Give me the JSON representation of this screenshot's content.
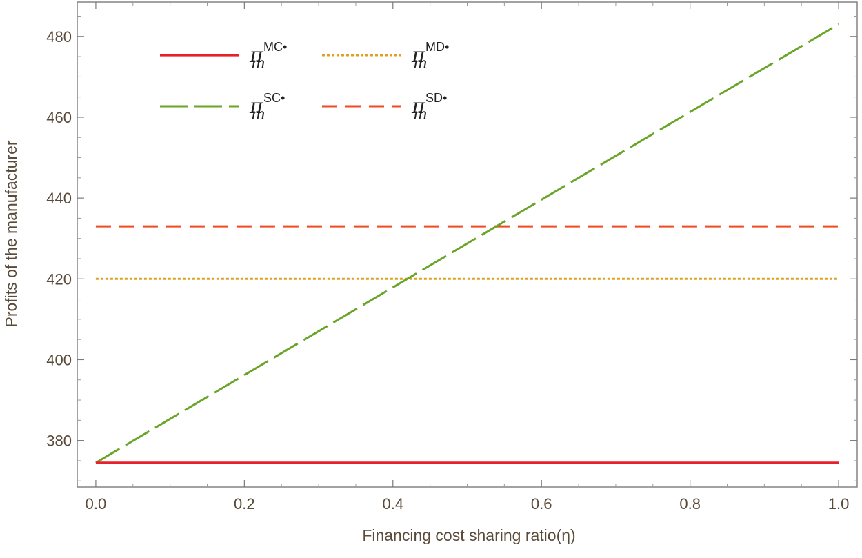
{
  "chart_data": {
    "type": "line",
    "xlabel": "Financing cost sharing ratio(η)",
    "ylabel": "Profits of the manufacturer",
    "xlim": [
      -0.025,
      1.025
    ],
    "ylim": [
      368.5,
      488.5
    ],
    "xticks": [
      0.0,
      0.2,
      0.4,
      0.6,
      0.8,
      1.0
    ],
    "xtick_labels": [
      "0.0",
      "0.2",
      "0.4",
      "0.6",
      "0.8",
      "1.0"
    ],
    "yticks": [
      380,
      400,
      420,
      440,
      460,
      480
    ],
    "ytick_labels": [
      "380",
      "400",
      "420",
      "440",
      "460",
      "480"
    ],
    "grid": false,
    "legend_position": "top-left",
    "x": [
      0.0,
      1.0
    ],
    "series": [
      {
        "name": "MC",
        "legend": {
          "base": "π",
          "sub": "m",
          "sup": "MC•"
        },
        "color": "#e8202a",
        "style": "solid",
        "values": [
          374.5,
          374.5
        ]
      },
      {
        "name": "MD",
        "legend": {
          "base": "π",
          "sub": "m",
          "sup": "MD•"
        },
        "color": "#e0a020",
        "style": "dotted",
        "values": [
          420,
          420
        ]
      },
      {
        "name": "SC",
        "legend": {
          "base": "π",
          "sub": "m",
          "sup": "SC•"
        },
        "color": "#6aa52a",
        "style": "longdash",
        "values": [
          374.5,
          483
        ]
      },
      {
        "name": "SD",
        "legend": {
          "base": "π",
          "sub": "m",
          "sup": "SD•"
        },
        "color": "#f04a22",
        "style": "dashed",
        "values": [
          433,
          433
        ]
      }
    ]
  }
}
